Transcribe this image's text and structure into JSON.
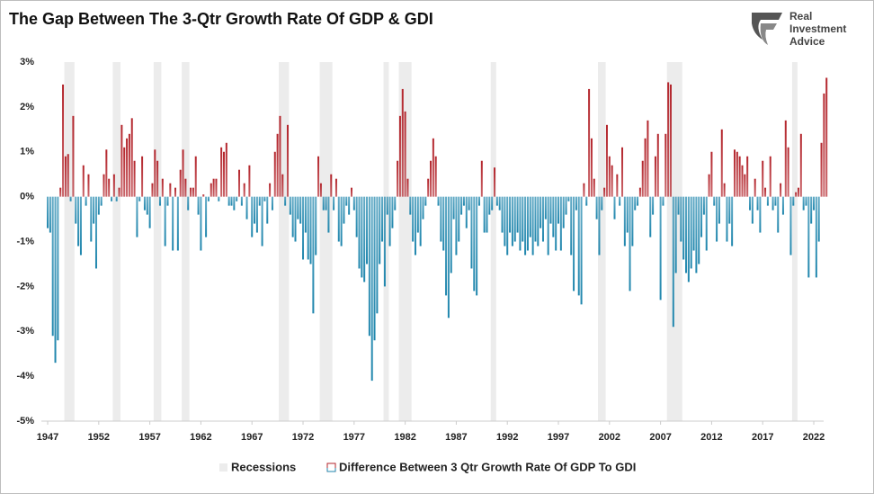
{
  "chart_data": {
    "type": "bar",
    "title": "The Gap Between The 3-Qtr Growth Rate Of GDP & GDI",
    "categories": [
      "1947",
      null,
      null,
      null,
      null,
      null,
      null,
      null,
      null,
      null,
      null,
      null,
      null,
      null,
      null,
      null,
      null,
      null,
      null,
      null,
      "1952",
      null,
      null,
      null,
      null,
      null,
      null,
      null,
      null,
      null,
      null,
      null,
      null,
      null,
      null,
      null,
      null,
      null,
      null,
      null,
      "1957",
      null,
      null,
      null,
      null,
      null,
      null,
      null,
      null,
      null,
      null,
      null,
      null,
      null,
      null,
      null,
      null,
      null,
      null,
      null,
      "1962",
      null,
      null,
      null,
      null,
      null,
      null,
      null,
      null,
      null,
      null,
      null,
      null,
      null,
      null,
      null,
      null,
      null,
      null,
      null,
      "1967",
      null,
      null,
      null,
      null,
      null,
      null,
      null,
      null,
      null,
      null,
      null,
      null,
      null,
      null,
      null,
      null,
      null,
      null,
      null,
      "1972",
      null,
      null,
      null,
      null,
      null,
      null,
      null,
      null,
      null,
      null,
      null,
      null,
      null,
      null,
      null,
      null,
      null,
      null,
      null,
      "1977",
      null,
      null,
      null,
      null,
      null,
      null,
      null,
      null,
      null,
      null,
      null,
      null,
      null,
      null,
      null,
      null,
      null,
      null,
      null,
      "1982",
      null,
      null,
      null,
      null,
      null,
      null,
      null,
      null,
      null,
      null,
      null,
      null,
      null,
      null,
      null,
      null,
      null,
      null,
      null,
      "1987",
      null,
      null,
      null,
      null,
      null,
      null,
      null,
      null,
      null,
      null,
      null,
      null,
      null,
      null,
      null,
      null,
      null,
      null,
      null,
      "1992",
      null,
      null,
      null,
      null,
      null,
      null,
      null,
      null,
      null,
      null,
      null,
      null,
      null,
      null,
      null,
      null,
      null,
      null,
      null,
      "1997",
      null,
      null,
      null,
      null,
      null,
      null,
      null,
      null,
      null,
      null,
      null,
      null,
      null,
      null,
      null,
      null,
      null,
      null,
      null,
      "2002",
      null,
      null,
      null,
      null,
      null,
      null,
      null,
      null,
      null,
      null,
      null,
      null,
      null,
      null,
      null,
      null,
      null,
      null,
      null,
      "2007",
      null,
      null,
      null,
      null,
      null,
      null,
      null,
      null,
      null,
      null,
      null,
      null,
      null,
      null,
      null,
      null,
      null,
      null,
      null,
      "2012",
      null,
      null,
      null,
      null,
      null,
      null,
      null,
      null,
      null,
      null,
      null,
      null,
      null,
      null,
      null,
      null,
      null,
      null,
      null,
      "2017",
      null,
      null,
      null,
      null,
      null,
      null,
      null,
      null,
      null,
      null,
      null,
      null,
      null,
      null,
      null,
      null,
      null,
      null,
      null,
      "2022",
      null,
      null,
      null,
      null,
      null
    ],
    "series": [
      {
        "name": "Difference Between 3 Qtr Growth Rate Of GDP To GDI",
        "colors": {
          "positive": "#b3242b",
          "negative": "#1f86ad"
        },
        "values": [
          -0.7,
          -0.8,
          -3.1,
          -3.7,
          -3.2,
          0.2,
          2.5,
          0.9,
          0.95,
          -0.1,
          1.8,
          -0.6,
          -1.1,
          -1.3,
          0.7,
          -0.2,
          0.5,
          -1.0,
          -0.6,
          -1.6,
          -0.4,
          -0.2,
          0.5,
          1.05,
          0.4,
          -0.1,
          0.5,
          -0.1,
          0.2,
          1.6,
          1.1,
          1.3,
          1.4,
          1.75,
          0.8,
          -0.9,
          -0.1,
          0.9,
          -0.3,
          -0.4,
          -0.7,
          0.3,
          1.05,
          0.8,
          -0.2,
          0.4,
          -1.1,
          -0.2,
          0.3,
          -1.2,
          0.2,
          -1.2,
          0.6,
          1.05,
          0.4,
          -0.3,
          0.2,
          0.2,
          0.9,
          -0.4,
          -1.2,
          0.05,
          -0.9,
          -0.1,
          0.3,
          0.4,
          0.4,
          -0.1,
          1.1,
          1.0,
          1.2,
          -0.2,
          -0.2,
          -0.3,
          -0.1,
          0.6,
          -0.2,
          0.3,
          -0.5,
          0.7,
          -0.9,
          -0.6,
          -0.8,
          -0.2,
          -1.1,
          -0.1,
          -0.6,
          0.3,
          -0.3,
          1.0,
          1.4,
          1.8,
          0.5,
          -0.2,
          1.6,
          -0.4,
          -0.9,
          -1.0,
          -0.5,
          -0.6,
          -1.4,
          -0.8,
          -1.4,
          -1.5,
          -2.6,
          -1.3,
          0.9,
          0.3,
          -0.3,
          -0.3,
          -0.8,
          0.5,
          -0.3,
          0.4,
          -1.0,
          -1.1,
          -0.6,
          -0.2,
          -0.4,
          0.2,
          -0.3,
          -0.9,
          -1.6,
          -1.8,
          -1.9,
          -1.5,
          -3.1,
          -4.1,
          -3.2,
          -2.6,
          -1.5,
          -1.0,
          -2.0,
          -0.4,
          -1.1,
          -0.7,
          -0.3,
          0.8,
          1.8,
          2.4,
          1.9,
          0.4,
          -0.4,
          -1.0,
          -1.3,
          -0.8,
          -1.1,
          -0.5,
          -0.2,
          0.4,
          0.8,
          1.3,
          0.9,
          -0.2,
          -1.0,
          -1.2,
          -2.2,
          -2.7,
          -1.7,
          -0.5,
          -1.3,
          -1.0,
          -0.4,
          -0.2,
          -0.7,
          -0.3,
          -1.6,
          -2.1,
          -2.2,
          -0.2,
          0.8,
          -0.8,
          -0.8,
          -0.4,
          -0.3,
          0.65,
          -0.2,
          -0.3,
          -0.8,
          -1.1,
          -1.3,
          -0.8,
          -1.1,
          -1.0,
          -0.8,
          -1.2,
          -1.0,
          -1.3,
          -1.2,
          -0.9,
          -1.3,
          -1.0,
          -1.1,
          -0.7,
          -1.0,
          -0.5,
          -1.3,
          -0.6,
          -0.9,
          -1.2,
          -0.6,
          -1.2,
          -0.7,
          -0.4,
          -0.1,
          -1.3,
          -2.1,
          -0.3,
          -2.2,
          -2.4,
          0.3,
          -0.2,
          2.4,
          1.3,
          0.4,
          -0.5,
          -1.3,
          -0.3,
          0.2,
          1.6,
          0.9,
          0.7,
          -0.5,
          0.5,
          -0.2,
          1.1,
          -1.1,
          -0.8,
          -2.1,
          -1.1,
          -0.3,
          -0.2,
          0.2,
          0.8,
          1.3,
          1.7,
          -0.9,
          -0.4,
          0.9,
          1.4,
          -2.3,
          -0.2,
          1.4,
          2.55,
          2.5,
          -2.9,
          -1.7,
          -0.4,
          -1.0,
          -1.4,
          -1.7,
          -1.9,
          -1.6,
          -1.2,
          -1.7,
          -1.5,
          -0.9,
          -0.4,
          -1.2,
          0.5,
          1.0,
          -0.2,
          -1.0,
          -0.6,
          1.5,
          0.3,
          -1.0,
          -0.6,
          -1.1,
          1.05,
          1.0,
          0.9,
          0.7,
          0.5,
          0.9,
          -0.3,
          -0.6,
          0.4,
          -0.3,
          -0.8,
          0.8,
          0.2,
          -0.2,
          0.9,
          -0.3,
          -0.2,
          -0.8,
          0.3,
          -0.4,
          1.7,
          1.1,
          -1.3,
          -0.2,
          0.1,
          0.2,
          1.4,
          -0.3,
          -0.2,
          -1.8,
          -0.6,
          -0.3,
          -1.8,
          -1.0,
          1.2,
          2.3,
          2.65
        ]
      }
    ],
    "ylim": [
      -5,
      3
    ],
    "yticks": [
      {
        "value": -5,
        "label": "-5%"
      },
      {
        "value": -4,
        "label": "-4%"
      },
      {
        "value": -3,
        "label": "-3%"
      },
      {
        "value": -2,
        "label": "-2%"
      },
      {
        "value": -1,
        "label": "-1%"
      },
      {
        "value": 0,
        "label": "0%"
      },
      {
        "value": 1,
        "label": "1%"
      },
      {
        "value": 2,
        "label": "2%"
      },
      {
        "value": 3,
        "label": "3%"
      }
    ],
    "first_year": 1947,
    "recessions": {
      "name": "Recessions",
      "color": "#ececec",
      "periods": [
        [
          1948.75,
          1949.75
        ],
        [
          1953.5,
          1954.25
        ],
        [
          1957.5,
          1958.25
        ],
        [
          1960.25,
          1961.0
        ],
        [
          1969.75,
          1970.75
        ],
        [
          1973.75,
          1975.0
        ],
        [
          1980.0,
          1980.5
        ],
        [
          1981.5,
          1982.75
        ],
        [
          1990.5,
          1991.0
        ],
        [
          2001.0,
          2001.75
        ],
        [
          2007.75,
          2009.25
        ],
        [
          2020.0,
          2020.25
        ]
      ]
    }
  },
  "logo": [
    "Real",
    "Investment",
    "Advice"
  ]
}
